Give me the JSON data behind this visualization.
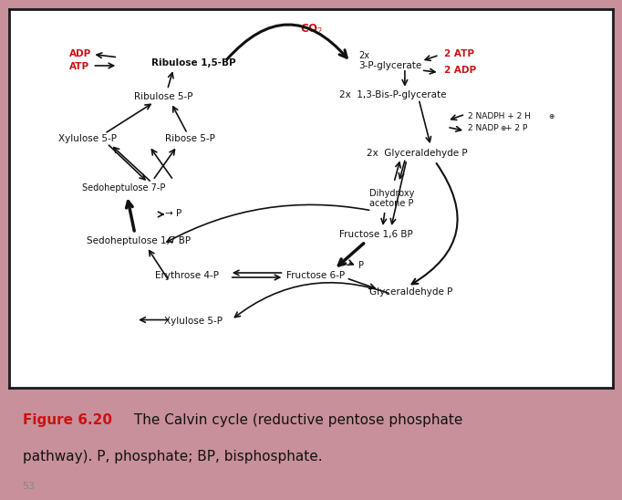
{
  "bg_pink": "#c8909a",
  "bg_tan": "#d4c8a8",
  "bg_white": "#ffffff",
  "border_color": "#1a1a1a",
  "black": "#111111",
  "red": "#cc1111",
  "gray": "#888888",
  "fig_label": "Figure 6.20",
  "fig_text1": " The Calvin cycle (reductive pentose phosphate",
  "fig_text2": "pathway). P, phosphate; BP, bisphosphate.",
  "page": "53"
}
